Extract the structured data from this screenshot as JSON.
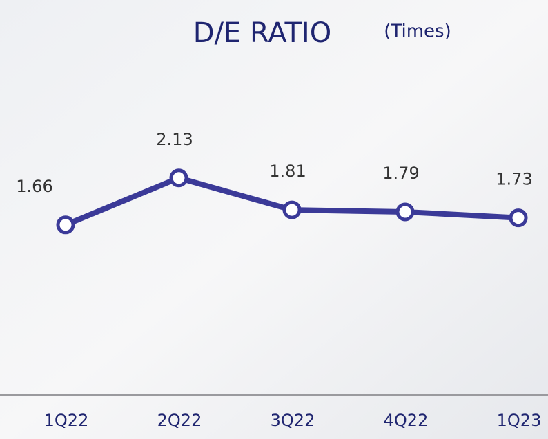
{
  "chart_data": {
    "type": "line",
    "title": "D/E RATIO",
    "subtitle": "(Times)",
    "categories": [
      "1Q22",
      "2Q22",
      "3Q22",
      "4Q22",
      "1Q23"
    ],
    "values": [
      1.66,
      2.13,
      1.81,
      1.79,
      1.73
    ],
    "color": "#3b3a98",
    "ylim": [
      0,
      3.5
    ]
  }
}
